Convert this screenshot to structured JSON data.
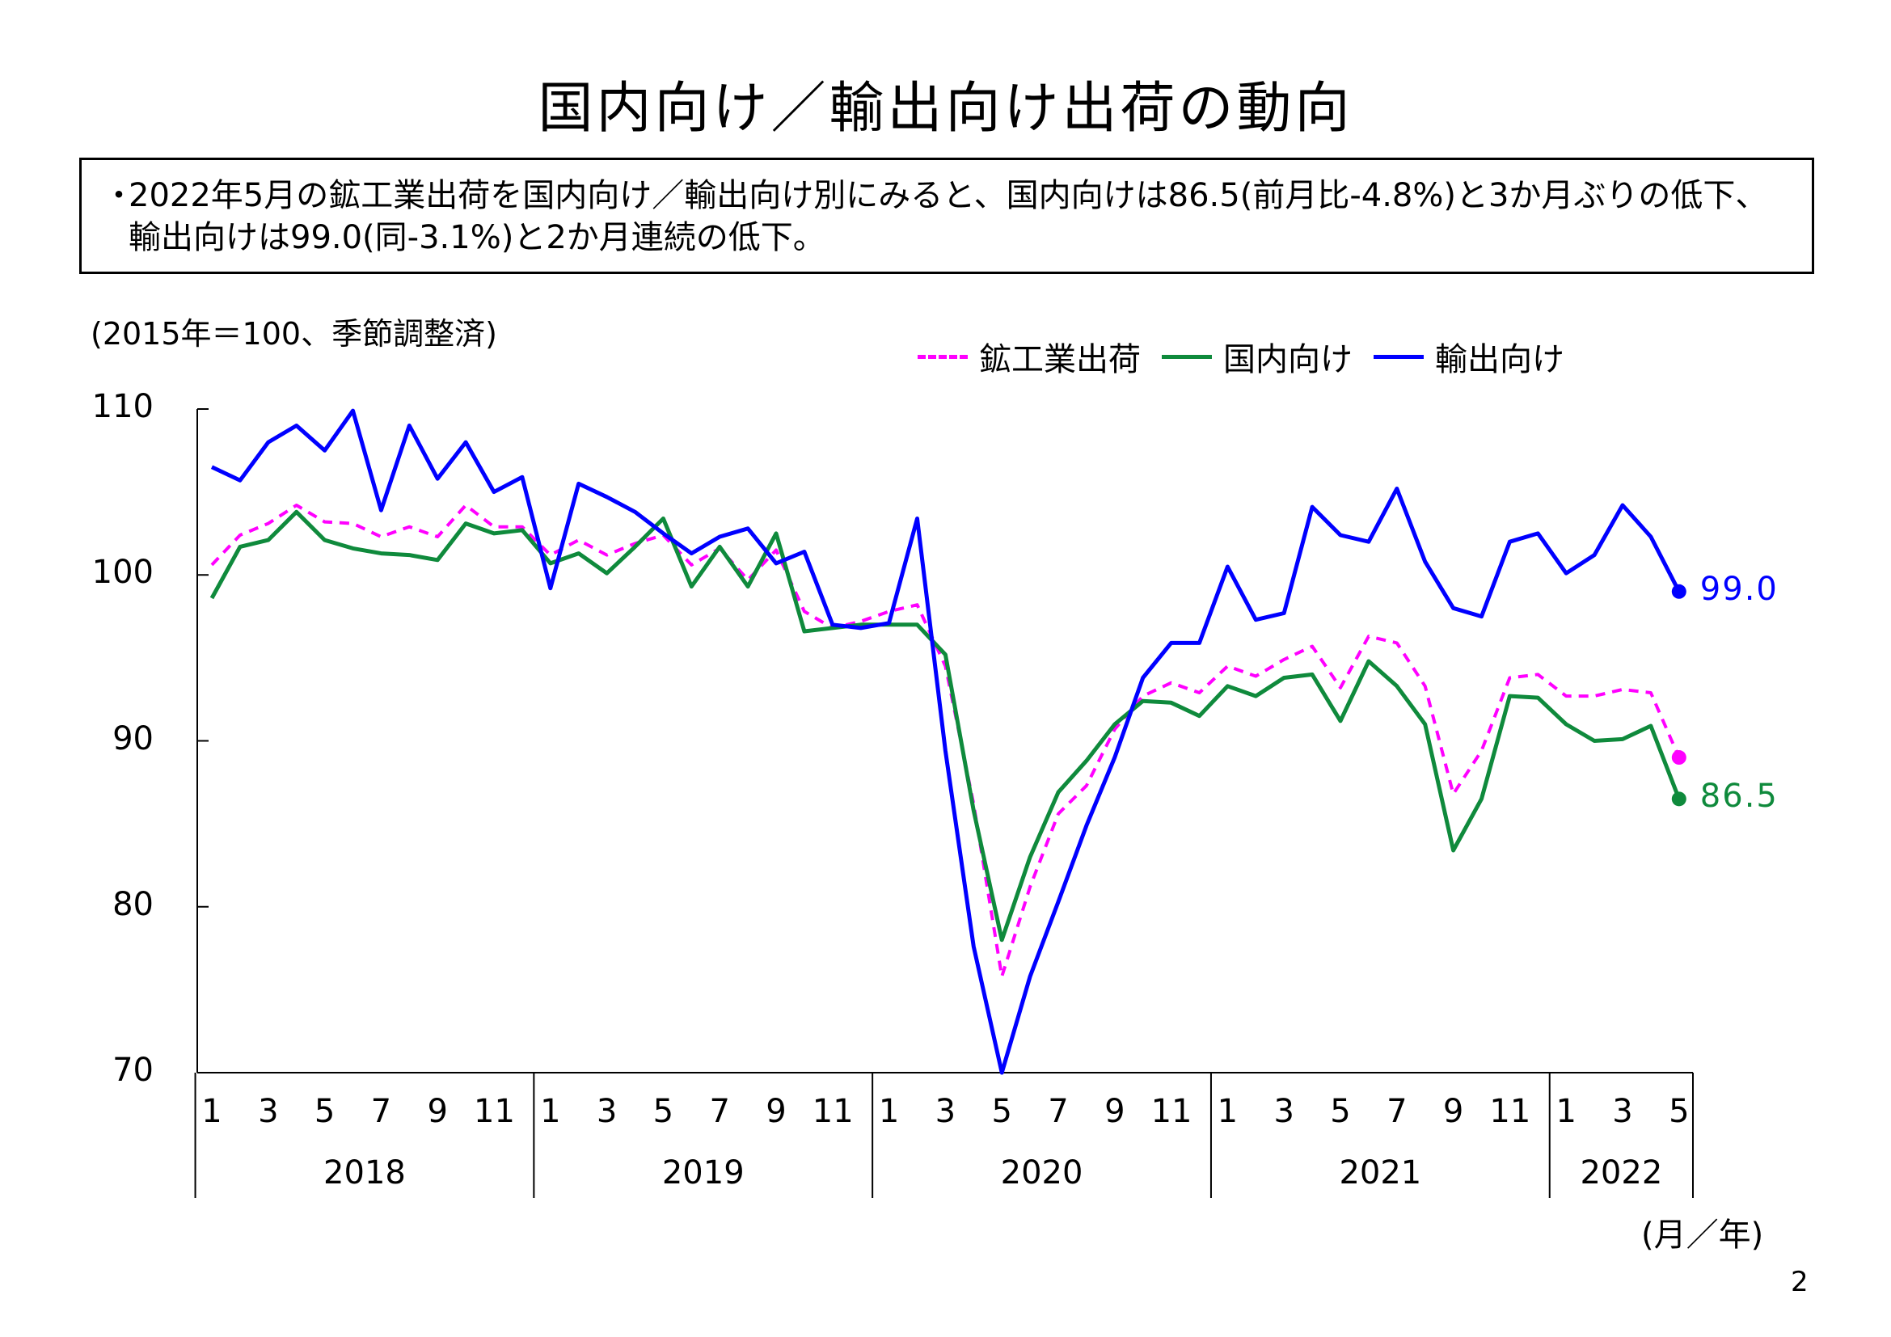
{
  "page": {
    "title": "国内向け／輸出向け出荷の動向",
    "summary_bullet": "・",
    "summary_text": "2022年5月の鉱工業出荷を国内向け／輸出向け別にみると、国内向けは86.5(前月比-4.8%)と3か月ぶりの低下、輸出向けは99.0(同-3.1%)と2か月連続の低下。",
    "unit_note": "(2015年＝100、季節調整済)",
    "axis_unit": "(月／年)",
    "page_number": "2"
  },
  "chart_data": {
    "type": "line",
    "title": "",
    "ylabel": "",
    "xlabel": "(月／年)",
    "ylim": [
      70,
      110
    ],
    "yticks": [
      70,
      80,
      90,
      100,
      110
    ],
    "grid": false,
    "legend_position": "top-right",
    "years": [
      "2018",
      "2019",
      "2020",
      "2021",
      "2022"
    ],
    "month_tick_labels": [
      "1",
      "3",
      "5",
      "7",
      "9",
      "11",
      "1",
      "3",
      "5",
      "7",
      "9",
      "11",
      "1",
      "3",
      "5",
      "7",
      "9",
      "11",
      "1",
      "3",
      "5",
      "7",
      "9",
      "11",
      "1",
      "3",
      "5"
    ],
    "x": [
      "2018-01",
      "2018-02",
      "2018-03",
      "2018-04",
      "2018-05",
      "2018-06",
      "2018-07",
      "2018-08",
      "2018-09",
      "2018-10",
      "2018-11",
      "2018-12",
      "2019-01",
      "2019-02",
      "2019-03",
      "2019-04",
      "2019-05",
      "2019-06",
      "2019-07",
      "2019-08",
      "2019-09",
      "2019-10",
      "2019-11",
      "2019-12",
      "2020-01",
      "2020-02",
      "2020-03",
      "2020-04",
      "2020-05",
      "2020-06",
      "2020-07",
      "2020-08",
      "2020-09",
      "2020-10",
      "2020-11",
      "2020-12",
      "2021-01",
      "2021-02",
      "2021-03",
      "2021-04",
      "2021-05",
      "2021-06",
      "2021-07",
      "2021-08",
      "2021-09",
      "2021-10",
      "2021-11",
      "2021-12",
      "2022-01",
      "2022-02",
      "2022-03",
      "2022-04",
      "2022-05"
    ],
    "series": [
      {
        "name": "鉱工業出荷",
        "color": "#ff00ff",
        "style": "dashed",
        "values": [
          100.6,
          102.4,
          103.1,
          104.2,
          103.2,
          103.1,
          102.3,
          102.9,
          102.3,
          104.2,
          102.9,
          102.9,
          101.2,
          102.1,
          101.2,
          101.9,
          102.4,
          100.6,
          101.6,
          99.7,
          101.5,
          97.8,
          96.8,
          97.2,
          97.8,
          98.2,
          94.5,
          86.2,
          75.8,
          81.2,
          85.6,
          87.3,
          90.7,
          92.7,
          93.5,
          92.9,
          94.5,
          93.9,
          94.9,
          95.7,
          93.2,
          96.3,
          95.9,
          93.3,
          86.8,
          89.4,
          93.8,
          94.0,
          92.7,
          92.7,
          93.1,
          92.9,
          89.0
        ],
        "end_label": ""
      },
      {
        "name": "国内向け",
        "color": "#0f8a3c",
        "style": "solid",
        "values": [
          98.6,
          101.7,
          102.1,
          103.8,
          102.1,
          101.6,
          101.3,
          101.2,
          100.9,
          103.1,
          102.5,
          102.7,
          100.7,
          101.3,
          100.1,
          101.7,
          103.4,
          99.3,
          101.7,
          99.3,
          102.5,
          96.6,
          96.8,
          97.0,
          97.0,
          97.0,
          95.2,
          85.8,
          78.0,
          83.0,
          86.9,
          88.8,
          91.0,
          92.4,
          92.3,
          91.5,
          93.3,
          92.7,
          93.8,
          94.0,
          91.2,
          94.8,
          93.3,
          91.0,
          83.4,
          86.5,
          92.7,
          92.6,
          91.0,
          90.0,
          90.1,
          90.9,
          86.5
        ],
        "end_label": "86.5"
      },
      {
        "name": "輸出向け",
        "color": "#0000ff",
        "style": "solid",
        "values": [
          106.5,
          105.7,
          108.0,
          109.0,
          107.5,
          109.9,
          103.9,
          109.0,
          105.8,
          108.0,
          105.0,
          105.9,
          99.2,
          105.5,
          104.7,
          103.8,
          102.5,
          101.3,
          102.3,
          102.8,
          100.7,
          101.4,
          97.0,
          96.8,
          97.1,
          103.4,
          89.4,
          77.6,
          70.0,
          75.8,
          80.3,
          84.9,
          89.0,
          93.8,
          95.9,
          95.9,
          100.5,
          97.3,
          97.7,
          104.1,
          102.4,
          102.0,
          105.2,
          100.8,
          98.0,
          97.5,
          102.0,
          102.5,
          100.1,
          101.2,
          104.2,
          102.3,
          99.0
        ],
        "end_label": "99.0"
      }
    ]
  }
}
